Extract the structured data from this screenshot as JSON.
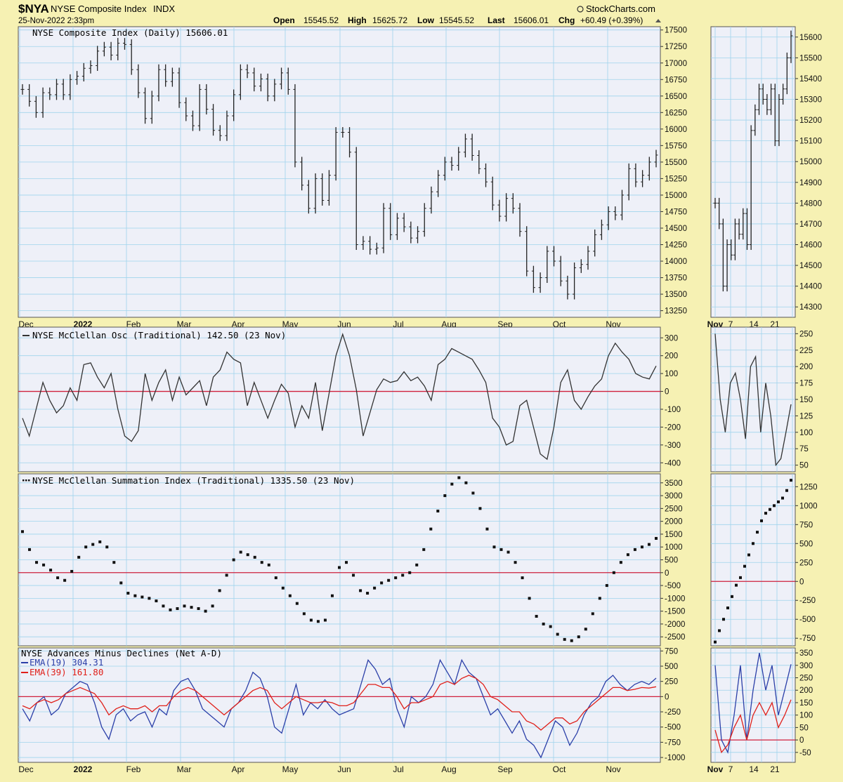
{
  "header": {
    "symbol": "$NYA",
    "name": "NYSE Composite Index",
    "exchange": "INDX",
    "datetime": "25-Nov-2022 2:33pm",
    "source": "StockCharts.com",
    "open_label": "Open",
    "open": "15545.52",
    "high_label": "High",
    "high": "15625.72",
    "low_label": "Low",
    "low": "15545.52",
    "last_label": "Last",
    "last": "15606.01",
    "chg_label": "Chg",
    "chg": "+60.49 (+0.39%)"
  },
  "colors": {
    "background": "#f6f1b3",
    "panel": "#eef0f8",
    "grid": "#9fd4ec",
    "price": "#222222",
    "zero_line": "#d0213d",
    "ema19": "#2b3fa8",
    "ema39": "#e0201a"
  },
  "chart_data": [
    {
      "type": "line",
      "style": "ohlc-bars",
      "title": "NYSE Composite Index (Daily) 15606.01",
      "ylim": [
        13150,
        17550
      ],
      "yticks": [
        17500,
        17250,
        17000,
        16750,
        16500,
        16250,
        16000,
        15750,
        15500,
        15250,
        15000,
        14750,
        14500,
        14250,
        14000,
        13750,
        13500,
        13250
      ],
      "x_labels": [
        "Dec",
        "2022",
        "Feb",
        "Mar",
        "Apr",
        "May",
        "Jun",
        "Jul",
        "Aug",
        "Sep",
        "Oct",
        "Nov"
      ],
      "series": [
        {
          "values": [
            16600,
            16420,
            16250,
            16550,
            16520,
            16680,
            16520,
            16750,
            16800,
            16920,
            16960,
            17180,
            17240,
            17120,
            17300,
            17280,
            16900,
            16550,
            16160,
            16500,
            16900,
            16720,
            16850,
            16400,
            16200,
            16050,
            16600,
            16300,
            15980,
            15900,
            16200,
            16520,
            16900,
            16850,
            16650,
            16760,
            16500,
            16680,
            16850,
            16600,
            15500,
            15150,
            14800,
            15250,
            14920,
            15300,
            15950,
            15950,
            15650,
            14250,
            14300,
            14180,
            14200,
            14800,
            14400,
            14650,
            14520,
            14350,
            14450,
            14800,
            15050,
            15300,
            15500,
            15450,
            15650,
            15850,
            15600,
            15400,
            15200,
            14850,
            14680,
            14950,
            14800,
            14450,
            13850,
            13600,
            13750,
            14150,
            14000,
            13700,
            13500,
            13900,
            13950,
            14150,
            14400,
            14550,
            14750,
            14700,
            15000,
            15400,
            15200,
            15300,
            15500,
            15606.01
          ]
        }
      ]
    },
    {
      "type": "line",
      "title": "NYSE McClellan Osc (Traditional) 142.50 (23 Nov)",
      "ylim": [
        -450,
        360
      ],
      "yticks": [
        300,
        200,
        100,
        0,
        -100,
        -200,
        -300,
        -400
      ],
      "zero_line": 0,
      "x_labels": [
        "Dec",
        "2022",
        "Feb",
        "Mar",
        "Apr",
        "May",
        "Jun",
        "Jul",
        "Aug",
        "Sep",
        "Oct",
        "Nov"
      ],
      "series": [
        {
          "values": [
            -150,
            -250,
            -100,
            50,
            -50,
            -120,
            -80,
            20,
            -50,
            150,
            160,
            80,
            20,
            100,
            -100,
            -250,
            -280,
            -220,
            100,
            -50,
            50,
            120,
            -50,
            80,
            -20,
            20,
            60,
            -80,
            80,
            120,
            220,
            180,
            160,
            -80,
            50,
            -50,
            -150,
            -50,
            40,
            -10,
            -200,
            -80,
            -150,
            50,
            -220,
            -10,
            200,
            320,
            200,
            10,
            -250,
            -120,
            10,
            70,
            50,
            60,
            110,
            60,
            80,
            30,
            -50,
            150,
            180,
            240,
            220,
            200,
            180,
            120,
            50,
            -150,
            -200,
            -300,
            -280,
            -80,
            -50,
            -200,
            -350,
            -380,
            -200,
            50,
            120,
            -50,
            -100,
            -30,
            30,
            70,
            200,
            270,
            220,
            180,
            100,
            80,
            70,
            142.5
          ]
        }
      ]
    },
    {
      "type": "scatter",
      "title": "NYSE McClellan Summation Index (Traditional) 1335.50 (23 Nov)",
      "ylim": [
        -2850,
        3850
      ],
      "yticks": [
        3500,
        3000,
        2500,
        2000,
        1500,
        1000,
        500,
        0,
        -500,
        -1000,
        -1500,
        -2000,
        -2500
      ],
      "zero_line": 0,
      "x_labels": [
        "Dec",
        "2022",
        "Feb",
        "Mar",
        "Apr",
        "May",
        "Jun",
        "Jul",
        "Aug",
        "Sep",
        "Oct",
        "Nov"
      ],
      "series": [
        {
          "values": [
            1600,
            900,
            400,
            300,
            100,
            -200,
            -300,
            50,
            600,
            1000,
            1100,
            1200,
            1000,
            400,
            -400,
            -800,
            -900,
            -950,
            -1000,
            -1100,
            -1300,
            -1450,
            -1400,
            -1300,
            -1350,
            -1400,
            -1500,
            -1300,
            -700,
            -100,
            500,
            800,
            700,
            600,
            400,
            300,
            -200,
            -600,
            -900,
            -1200,
            -1600,
            -1850,
            -1900,
            -1850,
            -900,
            200,
            400,
            -100,
            -700,
            -800,
            -600,
            -400,
            -300,
            -200,
            -100,
            0,
            300,
            900,
            1700,
            2400,
            3000,
            3450,
            3700,
            3500,
            3100,
            2500,
            1700,
            1000,
            900,
            800,
            400,
            -200,
            -1000,
            -1700,
            -2000,
            -2100,
            -2400,
            -2600,
            -2650,
            -2500,
            -2200,
            -1600,
            -1000,
            -500,
            0,
            400,
            700,
            900,
            1000,
            1100,
            1335.5
          ]
        }
      ]
    },
    {
      "type": "line",
      "title": "NYSE Advances Minus Declines (Net A-D)",
      "ylim": [
        -1080,
        800
      ],
      "yticks": [
        750,
        500,
        250,
        0,
        -250,
        -500,
        -750,
        -1000
      ],
      "zero_line": 0,
      "x_labels": [
        "Dec",
        "2022",
        "Feb",
        "Mar",
        "Apr",
        "May",
        "Jun",
        "Jul",
        "Aug",
        "Sep",
        "Oct",
        "Nov"
      ],
      "series": [
        {
          "name": "EMA(19) 304.31",
          "values": [
            -200,
            -400,
            -100,
            0,
            -300,
            -200,
            50,
            150,
            250,
            200,
            -100,
            -500,
            -700,
            -300,
            -200,
            -400,
            -300,
            -250,
            -500,
            -200,
            -300,
            100,
            250,
            300,
            100,
            -200,
            -300,
            -400,
            -500,
            -200,
            -100,
            100,
            400,
            300,
            0,
            -500,
            -600,
            -200,
            200,
            -300,
            -100,
            -200,
            -50,
            -200,
            -300,
            -250,
            -200,
            200,
            600,
            450,
            200,
            300,
            -200,
            -500,
            0,
            -100,
            0,
            200,
            600,
            400,
            200,
            600,
            400,
            300,
            0,
            -300,
            -200,
            -400,
            -600,
            -400,
            -700,
            -800,
            -1000,
            -700,
            -400,
            -500,
            -800,
            -600,
            -300,
            -100,
            0,
            250,
            350,
            200,
            100,
            200,
            250,
            200,
            304.31
          ]
        },
        {
          "name": "EMA(39) 161.80",
          "values": [
            -150,
            -200,
            -100,
            -50,
            -100,
            -50,
            50,
            100,
            150,
            100,
            50,
            -100,
            -300,
            -200,
            -150,
            -200,
            -200,
            -150,
            -250,
            -150,
            -150,
            0,
            100,
            150,
            100,
            0,
            -100,
            -200,
            -300,
            -200,
            -100,
            0,
            100,
            150,
            100,
            -100,
            -200,
            -100,
            0,
            -50,
            -100,
            -100,
            -80,
            -100,
            -150,
            -150,
            -100,
            50,
            200,
            200,
            150,
            150,
            0,
            -200,
            -100,
            -100,
            -50,
            0,
            200,
            250,
            200,
            300,
            350,
            300,
            200,
            0,
            -50,
            -150,
            -250,
            -250,
            -400,
            -450,
            -550,
            -450,
            -350,
            -350,
            -450,
            -400,
            -250,
            -150,
            -50,
            50,
            150,
            150,
            100,
            120,
            150,
            140,
            161.8
          ]
        }
      ]
    },
    {
      "type": "line",
      "style": "ohlc-bars",
      "title": "",
      "ylim": [
        14250,
        15650
      ],
      "yticks": [
        15600,
        15500,
        15400,
        15300,
        15200,
        15100,
        15000,
        14900,
        14800,
        14700,
        14600,
        14500,
        14400,
        14300
      ],
      "x_labels": [
        "Nov",
        "7",
        "14",
        "21"
      ],
      "series": [
        {
          "values": [
            14800,
            14700,
            14400,
            14600,
            14550,
            14700,
            14650,
            14750,
            14600,
            15150,
            15250,
            15350,
            15300,
            15250,
            15350,
            15100,
            15300,
            15350,
            15500,
            15606.01
          ]
        }
      ]
    },
    {
      "type": "line",
      "title": "",
      "ylim": [
        40,
        260
      ],
      "yticks": [
        250,
        225,
        200,
        175,
        150,
        125,
        100,
        75,
        50
      ],
      "x_labels": [
        "Nov",
        "7",
        "14",
        "21"
      ],
      "series": [
        {
          "values": [
            250,
            150,
            100,
            175,
            190,
            150,
            90,
            200,
            215,
            100,
            175,
            125,
            50,
            60,
            100,
            142.5
          ]
        }
      ]
    },
    {
      "type": "scatter",
      "title": "",
      "ylim": [
        -850,
        1420
      ],
      "yticks": [
        1250,
        1000,
        750,
        500,
        250,
        0,
        -250,
        -500,
        -750
      ],
      "zero_line": 0,
      "x_labels": [
        "Nov",
        "7",
        "14",
        "21"
      ],
      "series": [
        {
          "values": [
            -800,
            -650,
            -500,
            -350,
            -200,
            -50,
            50,
            200,
            350,
            500,
            650,
            800,
            900,
            950,
            1000,
            1050,
            1100,
            1200,
            1335.5
          ]
        }
      ]
    },
    {
      "type": "line",
      "title": "",
      "ylim": [
        -90,
        370
      ],
      "yticks": [
        350,
        300,
        250,
        200,
        150,
        100,
        50,
        0,
        -50
      ],
      "zero_line": 0,
      "x_labels": [
        "Nov",
        "7",
        "14",
        "21"
      ],
      "series": [
        {
          "name": "EMA(19)",
          "values": [
            300,
            0,
            -50,
            100,
            300,
            0,
            200,
            350,
            200,
            300,
            100,
            200,
            304.31
          ]
        },
        {
          "name": "EMA(39)",
          "values": [
            40,
            -50,
            -20,
            50,
            100,
            0,
            100,
            150,
            100,
            150,
            50,
            100,
            161.8
          ]
        }
      ]
    }
  ]
}
